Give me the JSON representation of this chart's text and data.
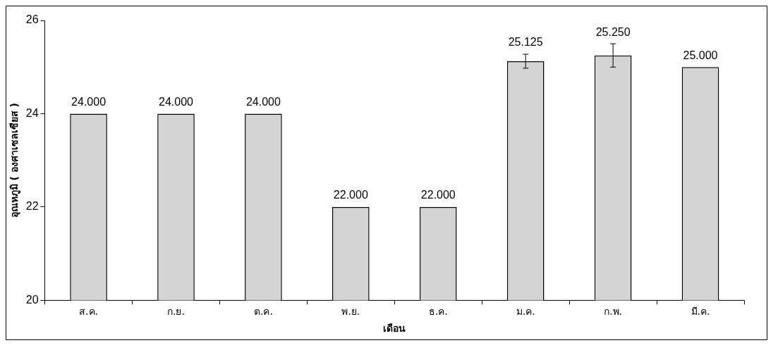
{
  "chart_data": {
    "type": "bar",
    "xlabel": "เดือน",
    "ylabel": "อุณหภูมิ ( องศาเซลเซียส )",
    "categories": [
      "ส.ค.",
      "ก.ย.",
      "ต.ค.",
      "พ.ย.",
      "ธ.ค.",
      "ม.ค.",
      "ก.พ.",
      "มี.ค."
    ],
    "values": [
      24,
      24,
      24,
      22,
      22,
      25.125,
      25.25,
      25
    ],
    "errors": [
      null,
      null,
      null,
      null,
      null,
      0.15,
      0.25,
      null
    ],
    "value_labels": [
      "24.000",
      "24.000",
      "24.000",
      "22.000",
      "22.000",
      "25.125",
      "25.250",
      "25.000"
    ],
    "color": "#d4d4d4",
    "ylim": [
      20,
      26
    ],
    "yticks": [
      20,
      22,
      24,
      26
    ],
    "grid": false,
    "legend": false
  }
}
